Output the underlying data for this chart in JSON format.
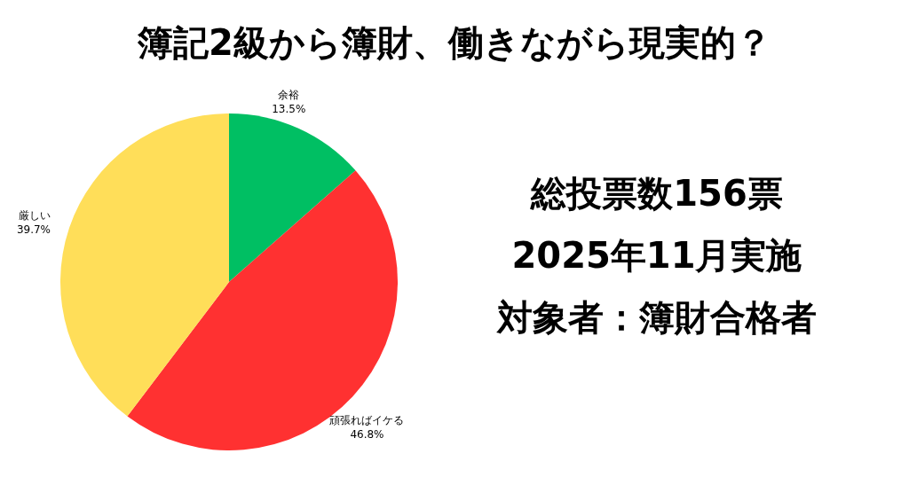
{
  "chart_data": {
    "type": "pie",
    "title": "簿記2級から簿財、働きながら現実的？",
    "categories": [
      "余裕",
      "頑張ればイケる",
      "厳しい"
    ],
    "values": [
      13.5,
      46.8,
      39.7
    ],
    "colors": [
      "#00bf63",
      "#ff3131",
      "#ffde59"
    ],
    "value_labels": [
      "13.5%",
      "46.8%",
      "39.7%"
    ],
    "annotations": [
      "総投票数156票",
      "2025年11月実施",
      "対象者：簿財合格者"
    ]
  }
}
